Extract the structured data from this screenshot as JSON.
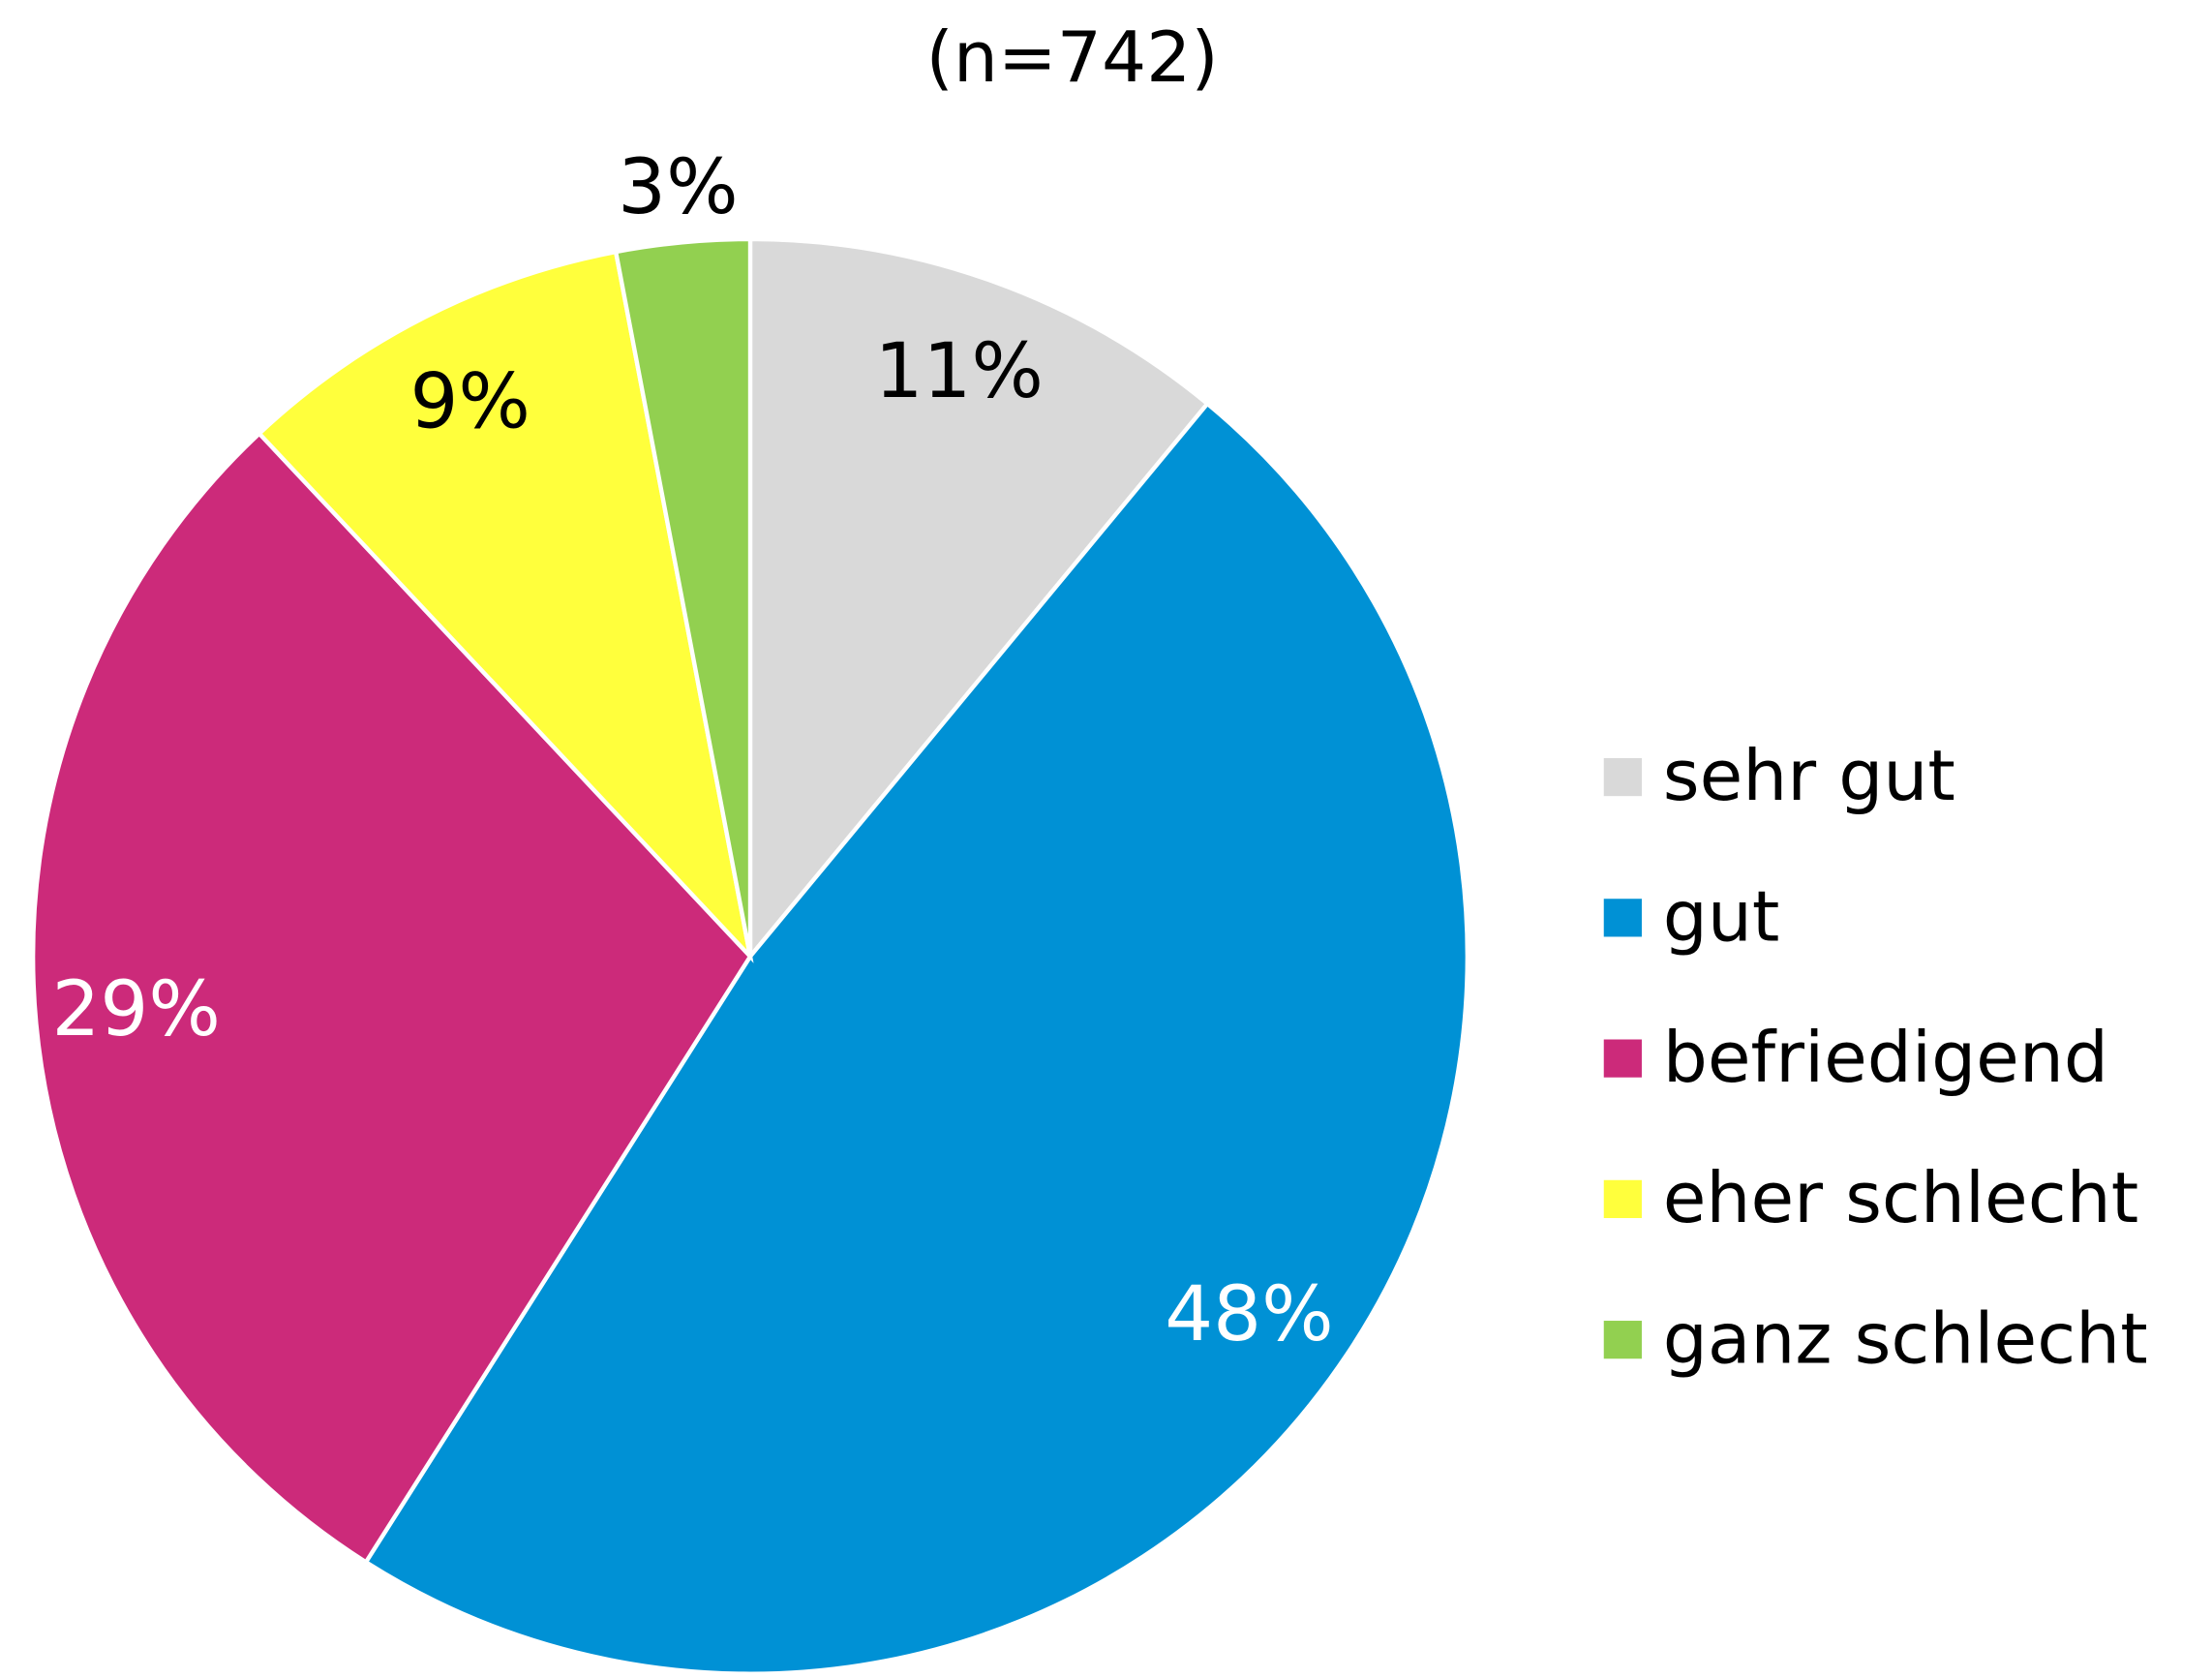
{
  "chart_data": {
    "type": "pie",
    "title": "(n=742)",
    "categories": [
      "sehr gut",
      "gut",
      "befriedigend",
      "eher schlecht",
      "ganz schlecht"
    ],
    "values": [
      11,
      48,
      29,
      9,
      3
    ],
    "value_labels": [
      "11%",
      "48%",
      "29%",
      "9%",
      "3%"
    ],
    "colors": [
      "#d9d9d9",
      "#0091d5",
      "#cc2a7a",
      "#ffff3c",
      "#92d050"
    ],
    "label_colors": [
      "#000000",
      "#ffffff",
      "#ffffff",
      "#000000",
      "#000000"
    ],
    "legend": "right"
  }
}
